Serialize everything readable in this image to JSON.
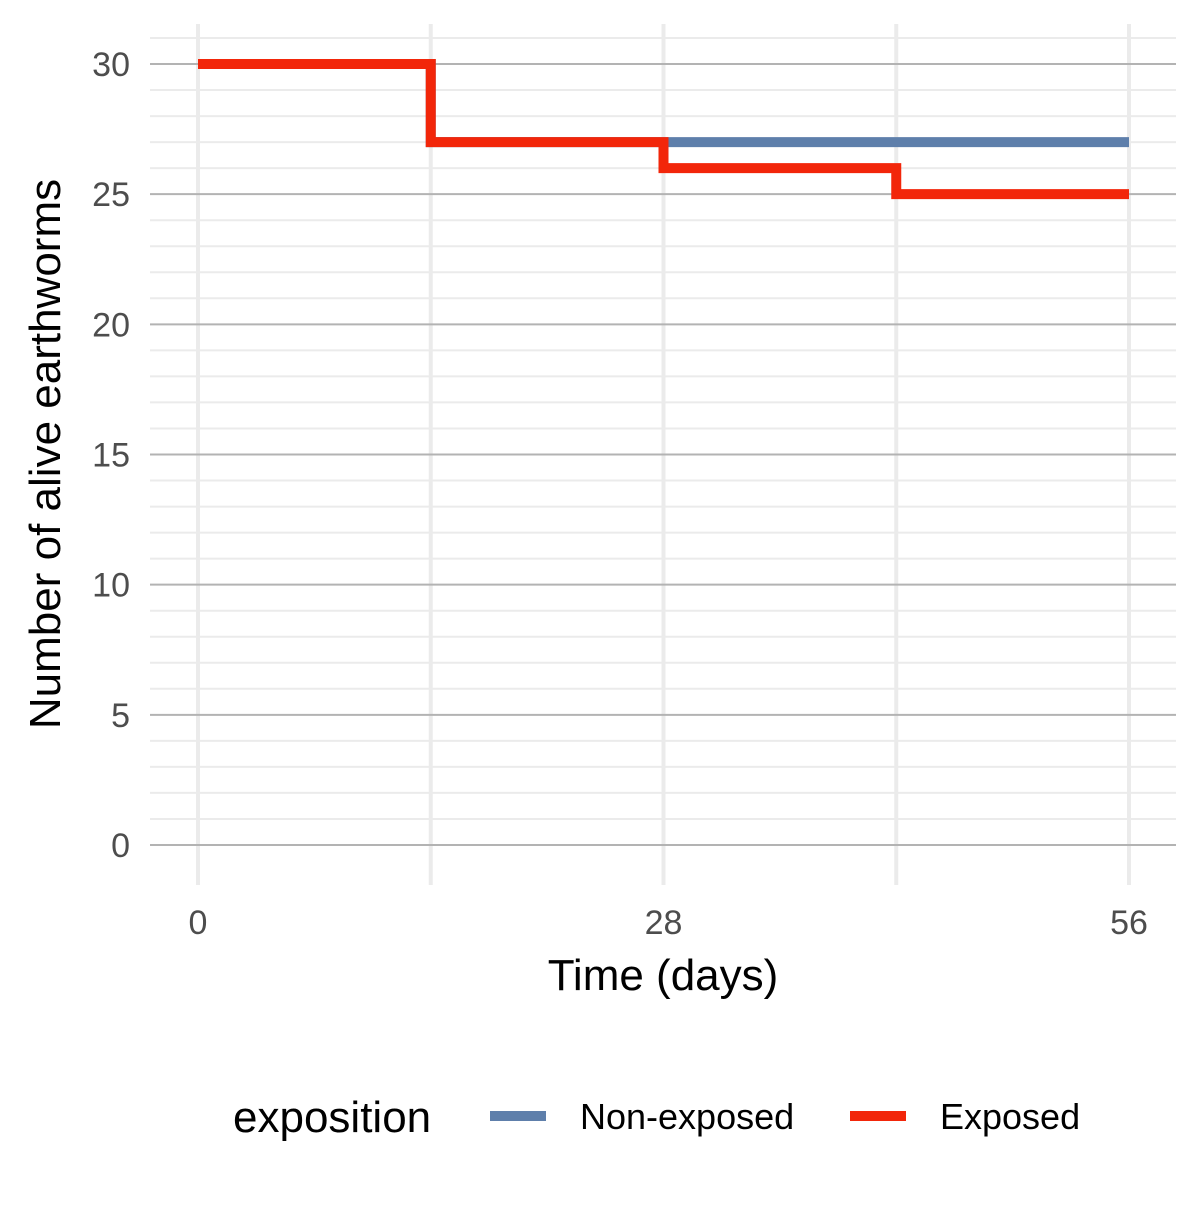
{
  "chart_data": {
    "type": "line",
    "step": true,
    "title": "",
    "xlabel": "Time (days)",
    "ylabel": "Number of alive earthworms",
    "xlim": [
      0,
      56
    ],
    "ylim": [
      0,
      30
    ],
    "x_ticks": [
      0,
      28,
      56
    ],
    "x_tick_labels": [
      "0",
      "28",
      "56"
    ],
    "y_ticks": [
      0,
      5,
      10,
      15,
      20,
      25,
      30
    ],
    "y_tick_labels": [
      "0",
      "5",
      "10",
      "15",
      "20",
      "25",
      "30"
    ],
    "grid": true,
    "legend": {
      "title": "exposition",
      "position": "bottom"
    },
    "series": [
      {
        "name": "Non-exposed",
        "color": "#5e7fab",
        "x": [
          0,
          14,
          28,
          42,
          56
        ],
        "y": [
          30,
          27,
          27,
          27,
          27
        ]
      },
      {
        "name": "Exposed",
        "color": "#f2260a",
        "x": [
          0,
          14,
          28,
          42,
          56
        ],
        "y": [
          30,
          27,
          26,
          25,
          25
        ]
      }
    ]
  }
}
